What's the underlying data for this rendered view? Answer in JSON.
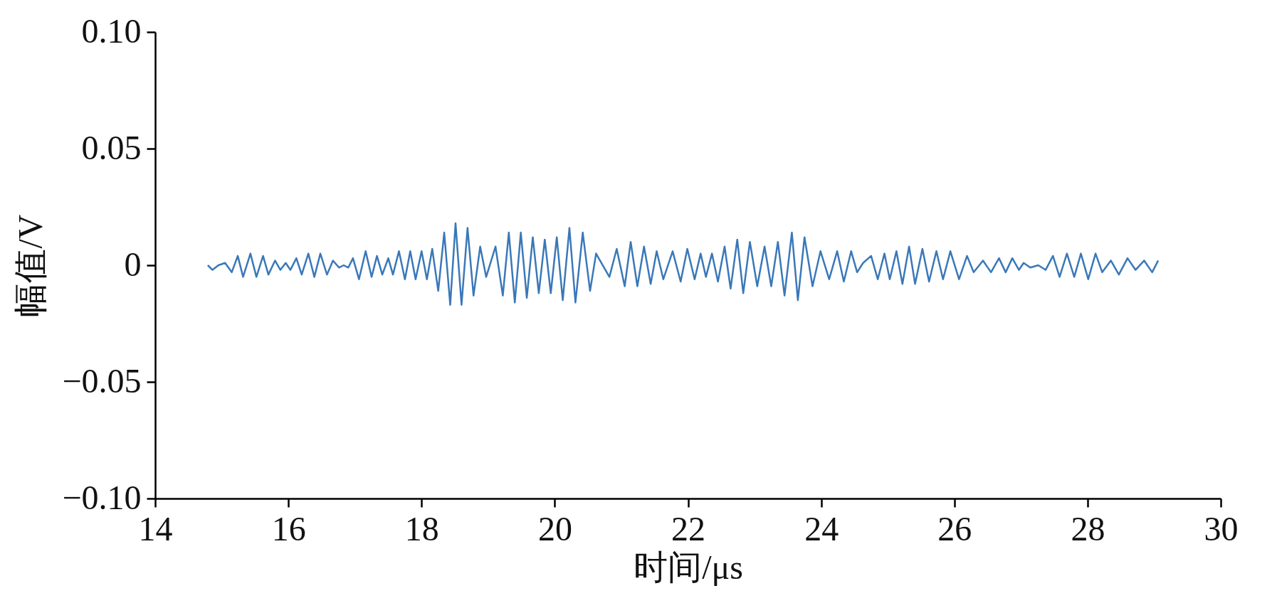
{
  "chart_data": {
    "type": "line",
    "xlabel": "时间/μs",
    "ylabel": "幅值/V",
    "xlim": [
      14,
      30
    ],
    "xticks": [
      14,
      16,
      18,
      20,
      22,
      24,
      26,
      28,
      30
    ],
    "ylim": [
      -0.1,
      0.1
    ],
    "yticks": [
      {
        "value": -0.1,
        "label": "−0.10"
      },
      {
        "value": -0.05,
        "label": "−0.05"
      },
      {
        "value": 0,
        "label": "0"
      },
      {
        "value": 0.05,
        "label": "0.05"
      },
      {
        "value": 0.1,
        "label": "0.10"
      }
    ],
    "grid": false,
    "marker": "none",
    "line_style": "solid",
    "x": [
      14.79,
      14.86,
      14.95,
      15.05,
      15.15,
      15.24,
      15.32,
      15.43,
      15.52,
      15.62,
      15.7,
      15.8,
      15.88,
      15.96,
      16.03,
      16.12,
      16.2,
      16.3,
      16.39,
      16.48,
      16.58,
      16.67,
      16.76,
      16.83,
      16.9,
      16.97,
      17.06,
      17.16,
      17.25,
      17.33,
      17.41,
      17.5,
      17.57,
      17.66,
      17.75,
      17.83,
      17.91,
      18.0,
      18.08,
      18.16,
      18.25,
      18.34,
      18.43,
      18.51,
      18.6,
      18.69,
      18.78,
      18.88,
      18.97,
      19.11,
      19.22,
      19.31,
      19.4,
      19.49,
      19.58,
      19.67,
      19.76,
      19.85,
      19.94,
      20.03,
      20.12,
      20.22,
      20.31,
      20.42,
      20.53,
      20.62,
      20.82,
      20.93,
      21.05,
      21.14,
      21.24,
      21.34,
      21.44,
      21.53,
      21.63,
      21.77,
      21.89,
      21.99,
      22.1,
      22.19,
      22.27,
      22.36,
      22.45,
      22.55,
      22.64,
      22.74,
      22.83,
      22.93,
      23.04,
      23.15,
      23.25,
      23.35,
      23.45,
      23.56,
      23.65,
      23.75,
      23.87,
      23.99,
      24.12,
      24.24,
      24.34,
      24.45,
      24.54,
      24.63,
      24.75,
      24.85,
      24.95,
      25.03,
      25.13,
      25.22,
      25.32,
      25.41,
      25.52,
      25.62,
      25.73,
      25.83,
      25.94,
      26.07,
      26.19,
      26.29,
      26.43,
      26.55,
      26.67,
      26.77,
      26.87,
      26.97,
      27.04,
      27.14,
      27.26,
      27.37,
      27.48,
      27.58,
      27.69,
      27.8,
      27.9,
      28.01,
      28.12,
      28.22,
      28.35,
      28.47,
      28.6,
      28.72,
      28.85,
      28.97,
      29.06
    ],
    "series": [
      {
        "color": "#3a78b8",
        "values": [
          0.0,
          -0.002,
          0.0,
          0.001,
          -0.003,
          0.004,
          -0.005,
          0.005,
          -0.005,
          0.004,
          -0.004,
          0.002,
          -0.002,
          0.001,
          -0.002,
          0.003,
          -0.004,
          0.005,
          -0.005,
          0.005,
          -0.004,
          0.002,
          -0.001,
          0.0,
          -0.001,
          0.003,
          -0.006,
          0.006,
          -0.005,
          0.004,
          -0.004,
          0.003,
          -0.004,
          0.006,
          -0.006,
          0.006,
          -0.006,
          0.006,
          -0.006,
          0.007,
          -0.011,
          0.014,
          -0.017,
          0.018,
          -0.017,
          0.016,
          -0.013,
          0.008,
          -0.005,
          0.008,
          -0.013,
          0.014,
          -0.016,
          0.014,
          -0.014,
          0.012,
          -0.012,
          0.011,
          -0.012,
          0.012,
          -0.015,
          0.016,
          -0.016,
          0.014,
          -0.011,
          0.005,
          -0.005,
          0.007,
          -0.009,
          0.01,
          -0.009,
          0.008,
          -0.008,
          0.006,
          -0.006,
          0.006,
          -0.007,
          0.007,
          -0.006,
          0.005,
          -0.005,
          0.005,
          -0.007,
          0.008,
          -0.01,
          0.011,
          -0.012,
          0.01,
          -0.009,
          0.008,
          -0.009,
          0.01,
          -0.013,
          0.014,
          -0.015,
          0.012,
          -0.009,
          0.006,
          -0.006,
          0.006,
          -0.007,
          0.006,
          -0.003,
          0.001,
          0.004,
          -0.006,
          0.005,
          -0.006,
          0.006,
          -0.008,
          0.008,
          -0.008,
          0.007,
          -0.007,
          0.006,
          -0.006,
          0.006,
          -0.006,
          0.004,
          -0.003,
          0.002,
          -0.003,
          0.003,
          -0.003,
          0.003,
          -0.002,
          0.001,
          -0.001,
          0.0,
          -0.002,
          0.004,
          -0.005,
          0.005,
          -0.005,
          0.005,
          -0.006,
          0.005,
          -0.003,
          0.002,
          -0.004,
          0.003,
          -0.002,
          0.002,
          -0.003,
          0.002
        ]
      }
    ]
  }
}
